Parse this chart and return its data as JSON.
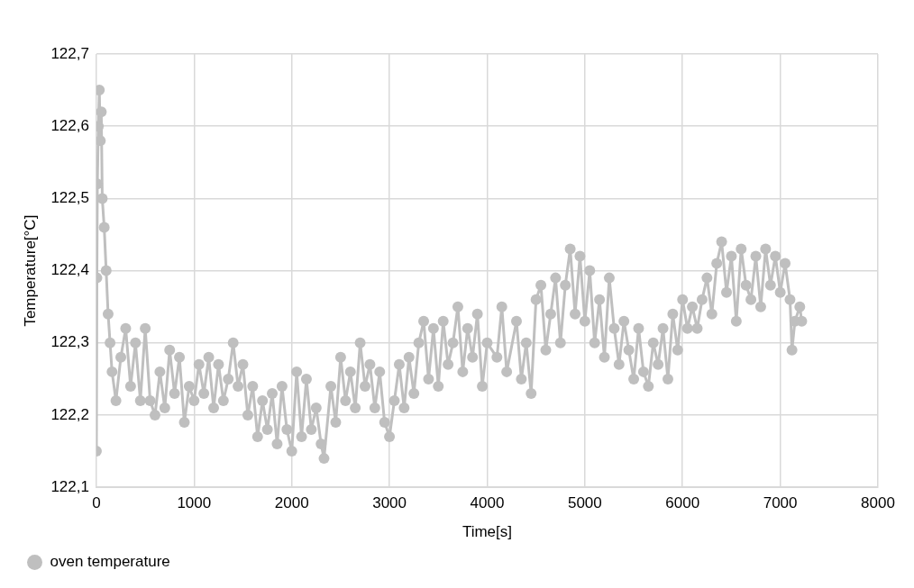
{
  "chart_data": {
    "type": "line",
    "xlabel": "Time[s]",
    "ylabel": "Temperature[°C]",
    "xlim": [
      0,
      8000
    ],
    "xticks": [
      0,
      1000,
      2000,
      3000,
      4000,
      5000,
      6000,
      7000,
      8000
    ],
    "ylim": [
      122.1,
      122.7
    ],
    "yticks": [
      {
        "value": 122.1,
        "label": "122,1"
      },
      {
        "value": 122.2,
        "label": "122,2"
      },
      {
        "value": 122.3,
        "label": "122,3"
      },
      {
        "value": 122.4,
        "label": "122,4"
      },
      {
        "value": 122.5,
        "label": "122,5"
      },
      {
        "value": 122.6,
        "label": "122,6"
      },
      {
        "value": 122.7,
        "label": "122,7"
      }
    ],
    "grid": true,
    "legend": "bottom left",
    "marker": "circle",
    "line_style": "solid",
    "series": [
      {
        "name": "oven temperature",
        "color": "#bfbfbf",
        "x": [
          0,
          5,
          10,
          20,
          30,
          40,
          50,
          60,
          80,
          100,
          120,
          140,
          160,
          200,
          250,
          300,
          350,
          400,
          450,
          500,
          550,
          600,
          650,
          700,
          750,
          800,
          850,
          900,
          950,
          1000,
          1050,
          1100,
          1150,
          1200,
          1250,
          1300,
          1350,
          1400,
          1450,
          1500,
          1550,
          1600,
          1650,
          1700,
          1750,
          1800,
          1850,
          1900,
          1950,
          2000,
          2050,
          2100,
          2150,
          2200,
          2250,
          2300,
          2330,
          2400,
          2450,
          2500,
          2550,
          2600,
          2650,
          2700,
          2750,
          2800,
          2850,
          2900,
          2950,
          3000,
          3050,
          3100,
          3150,
          3200,
          3250,
          3300,
          3350,
          3400,
          3450,
          3500,
          3550,
          3600,
          3650,
          3700,
          3750,
          3800,
          3850,
          3900,
          3950,
          4000,
          4100,
          4150,
          4200,
          4300,
          4350,
          4400,
          4450,
          4500,
          4550,
          4600,
          4650,
          4700,
          4750,
          4800,
          4850,
          4900,
          4950,
          5000,
          5050,
          5100,
          5150,
          5200,
          5250,
          5300,
          5350,
          5400,
          5450,
          5500,
          5550,
          5600,
          5650,
          5700,
          5750,
          5800,
          5850,
          5900,
          5950,
          6000,
          6050,
          6100,
          6150,
          6200,
          6250,
          6300,
          6350,
          6400,
          6450,
          6500,
          6550,
          6600,
          6650,
          6700,
          6750,
          6800,
          6850,
          6900,
          6950,
          7000,
          7050,
          7100,
          7120,
          7150,
          7200,
          7220
        ],
        "values": [
          122.15,
          122.39,
          122.52,
          122.6,
          122.65,
          122.58,
          122.62,
          122.5,
          122.46,
          122.4,
          122.34,
          122.3,
          122.26,
          122.22,
          122.28,
          122.32,
          122.24,
          122.3,
          122.22,
          122.32,
          122.22,
          122.2,
          122.26,
          122.21,
          122.29,
          122.23,
          122.28,
          122.19,
          122.24,
          122.22,
          122.27,
          122.23,
          122.28,
          122.21,
          122.27,
          122.22,
          122.25,
          122.3,
          122.24,
          122.27,
          122.2,
          122.24,
          122.17,
          122.22,
          122.18,
          122.23,
          122.16,
          122.24,
          122.18,
          122.15,
          122.26,
          122.17,
          122.25,
          122.18,
          122.21,
          122.16,
          122.14,
          122.24,
          122.19,
          122.28,
          122.22,
          122.26,
          122.21,
          122.3,
          122.24,
          122.27,
          122.21,
          122.26,
          122.19,
          122.17,
          122.22,
          122.27,
          122.21,
          122.28,
          122.23,
          122.3,
          122.33,
          122.25,
          122.32,
          122.24,
          122.33,
          122.27,
          122.3,
          122.35,
          122.26,
          122.32,
          122.28,
          122.34,
          122.24,
          122.3,
          122.28,
          122.35,
          122.26,
          122.33,
          122.25,
          122.3,
          122.23,
          122.36,
          122.38,
          122.29,
          122.34,
          122.39,
          122.3,
          122.38,
          122.43,
          122.34,
          122.42,
          122.33,
          122.4,
          122.3,
          122.36,
          122.28,
          122.39,
          122.32,
          122.27,
          122.33,
          122.29,
          122.25,
          122.32,
          122.26,
          122.24,
          122.3,
          122.27,
          122.32,
          122.25,
          122.34,
          122.29,
          122.36,
          122.32,
          122.35,
          122.32,
          122.36,
          122.39,
          122.34,
          122.41,
          122.44,
          122.37,
          122.42,
          122.33,
          122.43,
          122.38,
          122.36,
          122.42,
          122.35,
          122.43,
          122.38,
          122.42,
          122.37,
          122.41,
          122.36,
          122.29,
          122.33,
          122.35,
          122.33
        ]
      }
    ]
  }
}
